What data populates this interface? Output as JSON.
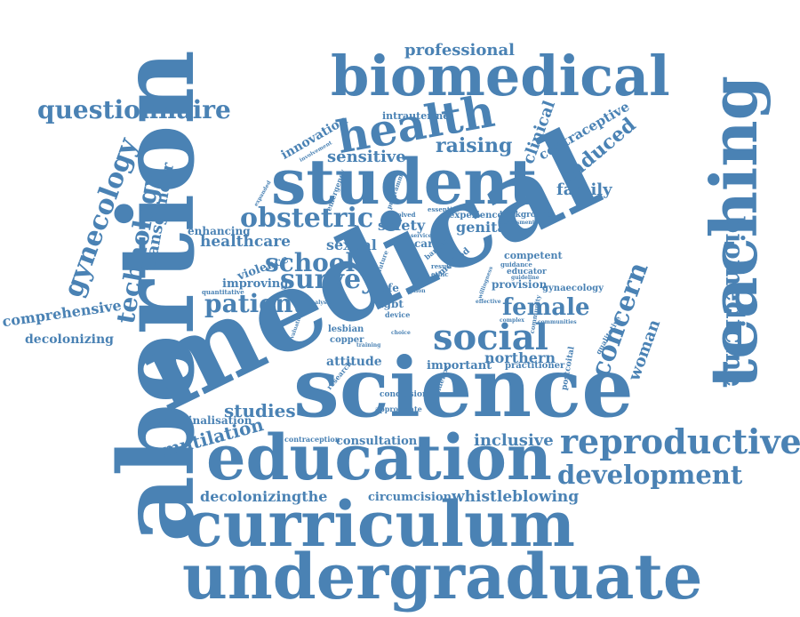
{
  "colors": {
    "word": "#4a82b4",
    "background": "#ffffff"
  },
  "words": [
    "abortion",
    "medical",
    "science",
    "teaching",
    "student",
    "education",
    "curriculum",
    "undergraduate",
    "biomedical",
    "reproductive",
    "social",
    "health",
    "biomedicine",
    "development",
    "questionnaire",
    "gynecology",
    "technology",
    "survey",
    "school",
    "obstetric",
    "patient",
    "concern",
    "female",
    "transgender",
    "comprehensive",
    "professional",
    "raising",
    "induced",
    "sensitive",
    "innovation",
    "family",
    "healthcare",
    "clinical",
    "contraceptive",
    "woman",
    "mutilation",
    "studies",
    "inclusive",
    "whistleblowing",
    "decolonizingthe",
    "circumcision",
    "decolonizing",
    "decriminalisation",
    "consultation",
    "northern",
    "attitude",
    "important",
    "practitioner",
    "genital",
    "safety",
    "sexual",
    "violence",
    "improving",
    "enhancing",
    "experience",
    "background",
    "competent",
    "provision",
    "gynaecology",
    "educator",
    "lgbt",
    "life",
    "lesbian",
    "copper",
    "intrauterine",
    "conclusion",
    "appropriate",
    "contraception",
    "postcoital",
    "qualitative",
    "care",
    "method",
    "confidence",
    "research",
    "device",
    "quantitative",
    "emergency",
    "guidance",
    "essential",
    "barrier",
    "involved",
    "programme",
    "ethic",
    "training",
    "result",
    "community",
    "future",
    "analysis",
    "evaluation",
    "assessment",
    "guideline",
    "willingness",
    "effective",
    "complex",
    "communities",
    "involvement",
    "expanded",
    "service",
    "choice",
    "right",
    "option"
  ]
}
